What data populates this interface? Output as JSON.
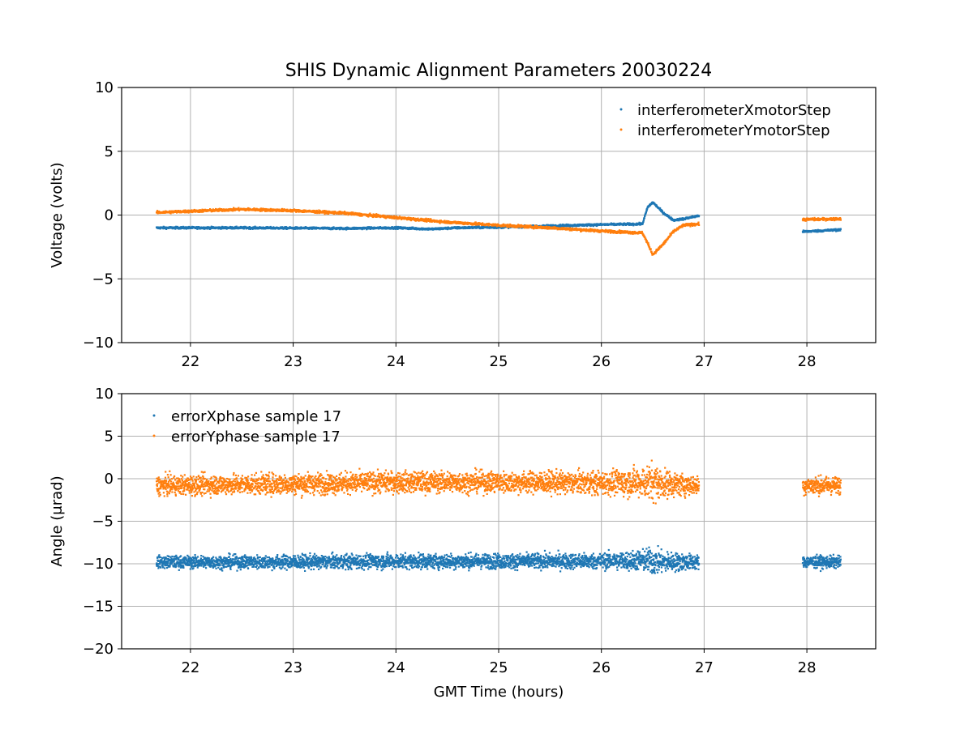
{
  "chart_data": {
    "title": "SHIS Dynamic Alignment Parameters 20030224",
    "colors": {
      "blue": "#1f77b4",
      "orange": "#ff7f0e"
    },
    "panels": [
      {
        "type": "scatter",
        "ylabel": "Voltage (volts)",
        "xlabel": "",
        "xlim": [
          21.33,
          28.67
        ],
        "ylim": [
          -10,
          10
        ],
        "xticks": [
          22,
          23,
          24,
          25,
          26,
          27,
          28
        ],
        "yticks": [
          -10,
          -5,
          0,
          5,
          10
        ],
        "ytick_labels": [
          "−10",
          "−5",
          "0",
          "5",
          "10"
        ],
        "grid": true,
        "legend_position": "top-right",
        "series": [
          {
            "name": "interferometerXmotorStep",
            "color": "#1f77b4",
            "noise": 0.08,
            "segments": [
              [
                [
                  21.67,
                  -1.0
                ],
                [
                  22.5,
                  -1.0
                ],
                [
                  23.5,
                  -1.05
                ],
                [
                  24.0,
                  -1.0
                ],
                [
                  24.35,
                  -1.1
                ],
                [
                  24.6,
                  -1.0
                ],
                [
                  25.0,
                  -0.95
                ],
                [
                  25.5,
                  -0.85
                ],
                [
                  26.0,
                  -0.75
                ],
                [
                  26.4,
                  -0.7
                ],
                [
                  26.45,
                  0.6
                ],
                [
                  26.5,
                  1.0
                ],
                [
                  26.6,
                  0.2
                ],
                [
                  26.7,
                  -0.4
                ],
                [
                  26.8,
                  -0.3
                ],
                [
                  26.95,
                  -0.05
                ]
              ],
              [
                [
                  27.96,
                  -1.3
                ],
                [
                  28.33,
                  -1.15
                ]
              ]
            ]
          },
          {
            "name": "interferometerYmotorStep",
            "color": "#ff7f0e",
            "noise": 0.1,
            "segments": [
              [
                [
                  21.67,
                  0.2
                ],
                [
                  22.0,
                  0.3
                ],
                [
                  22.5,
                  0.45
                ],
                [
                  23.0,
                  0.35
                ],
                [
                  23.5,
                  0.15
                ],
                [
                  24.0,
                  -0.2
                ],
                [
                  24.5,
                  -0.55
                ],
                [
                  25.0,
                  -0.8
                ],
                [
                  25.5,
                  -1.0
                ],
                [
                  26.0,
                  -1.25
                ],
                [
                  26.4,
                  -1.4
                ],
                [
                  26.45,
                  -2.2
                ],
                [
                  26.5,
                  -3.1
                ],
                [
                  26.6,
                  -2.3
                ],
                [
                  26.7,
                  -1.3
                ],
                [
                  26.8,
                  -0.8
                ],
                [
                  26.95,
                  -0.7
                ]
              ],
              [
                [
                  27.96,
                  -0.35
                ],
                [
                  28.33,
                  -0.3
                ]
              ]
            ]
          }
        ]
      },
      {
        "type": "scatter",
        "ylabel": "Angle (μrad)",
        "xlabel": "GMT Time (hours)",
        "xlim": [
          21.33,
          28.67
        ],
        "ylim": [
          -20,
          10
        ],
        "xticks": [
          22,
          23,
          24,
          25,
          26,
          27,
          28
        ],
        "yticks": [
          -20,
          -15,
          -10,
          -5,
          0,
          5,
          10
        ],
        "ytick_labels": [
          "−20",
          "−15",
          "−10",
          "−5",
          "0",
          "5",
          "10"
        ],
        "grid": true,
        "legend_position": "top-left",
        "series": [
          {
            "name": "errorXphase sample 17",
            "color": "#1f77b4",
            "segments": [
              [
                [
                  21.67,
                  -9.8,
                  0.7
                ],
                [
                  23.0,
                  -9.8,
                  0.8
                ],
                [
                  24.0,
                  -9.7,
                  0.85
                ],
                [
                  25.0,
                  -9.7,
                  0.85
                ],
                [
                  26.0,
                  -9.7,
                  0.9
                ],
                [
                  26.4,
                  -9.6,
                  1.2
                ],
                [
                  26.5,
                  -9.7,
                  1.6
                ],
                [
                  26.6,
                  -9.8,
                  1.2
                ],
                [
                  26.95,
                  -9.8,
                  0.8
                ]
              ],
              [
                [
                  27.96,
                  -9.8,
                  0.7
                ],
                [
                  28.33,
                  -9.8,
                  0.7
                ]
              ]
            ]
          },
          {
            "name": "errorYphase sample 17",
            "color": "#ff7f0e",
            "segments": [
              [
                [
                  21.67,
                  -0.8,
                  1.1
                ],
                [
                  23.0,
                  -0.6,
                  1.2
                ],
                [
                  24.0,
                  -0.4,
                  1.2
                ],
                [
                  25.0,
                  -0.4,
                  1.2
                ],
                [
                  26.0,
                  -0.5,
                  1.3
                ],
                [
                  26.4,
                  -0.4,
                  1.7
                ],
                [
                  26.5,
                  -0.4,
                  2.3
                ],
                [
                  26.6,
                  -0.6,
                  1.6
                ],
                [
                  26.95,
                  -0.8,
                  1.0
                ]
              ],
              [
                [
                  27.96,
                  -0.8,
                  1.0
                ],
                [
                  28.33,
                  -0.8,
                  1.0
                ]
              ]
            ]
          }
        ]
      }
    ]
  }
}
